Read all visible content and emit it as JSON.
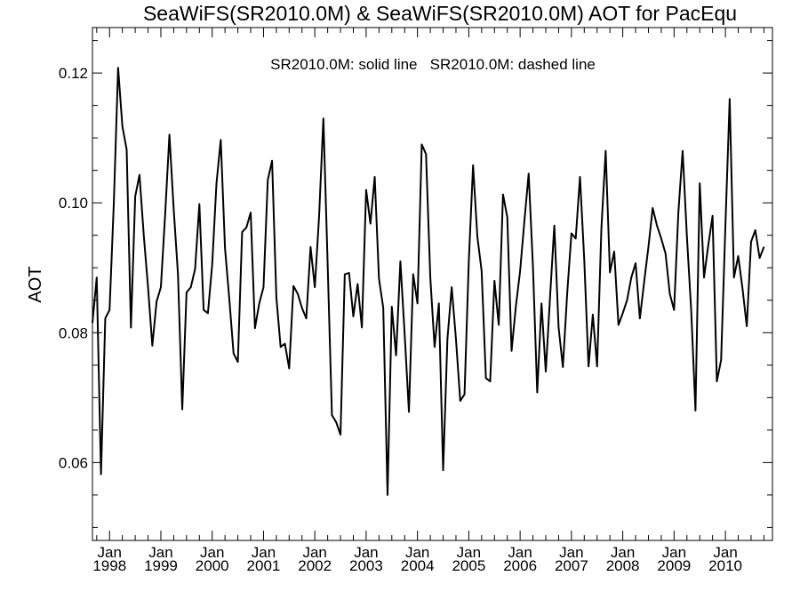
{
  "chart_data": {
    "type": "line",
    "title": "SeaWiFS(SR2010.0M) & SeaWiFS(SR2010.0M)  AOT for PacEqu",
    "ylabel": "AOT",
    "xlabel": "",
    "annotation": "SR2010.0M: solid line   SR2010.0M: dashed line",
    "ylim": [
      0.048,
      0.127
    ],
    "xlim": [
      "1997-09",
      "2010-12"
    ],
    "y_ticks": [
      0.06,
      0.08,
      0.1,
      0.12
    ],
    "y_tick_labels": [
      "0.06",
      "0.08",
      "0.10",
      "0.12"
    ],
    "x_tick_labels": [
      {
        "month": "Jan",
        "year": "1998"
      },
      {
        "month": "Jan",
        "year": "1999"
      },
      {
        "month": "Jan",
        "year": "2000"
      },
      {
        "month": "Jan",
        "year": "2001"
      },
      {
        "month": "Jan",
        "year": "2002"
      },
      {
        "month": "Jan",
        "year": "2003"
      },
      {
        "month": "Jan",
        "year": "2004"
      },
      {
        "month": "Jan",
        "year": "2005"
      },
      {
        "month": "Jan",
        "year": "2006"
      },
      {
        "month": "Jan",
        "year": "2007"
      },
      {
        "month": "Jan",
        "year": "2008"
      },
      {
        "month": "Jan",
        "year": "2009"
      },
      {
        "month": "Jan",
        "year": "2010"
      }
    ],
    "series": [
      {
        "line_style": "solid",
        "color": "#000000",
        "x_start": "1997-09",
        "x_step": "1 month",
        "values": [
          0.0815,
          0.0885,
          0.0582,
          0.0822,
          0.0835,
          0.1,
          0.1208,
          0.1118,
          0.1082,
          0.0808,
          0.101,
          0.1043,
          0.095,
          0.087,
          0.078,
          0.0848,
          0.087,
          0.0982,
          0.1105,
          0.099,
          0.089,
          0.0682,
          0.0862,
          0.087,
          0.0898,
          0.0998,
          0.0835,
          0.083,
          0.0905,
          0.103,
          0.1097,
          0.093,
          0.0852,
          0.0768,
          0.0755,
          0.0955,
          0.0962,
          0.0985,
          0.0807,
          0.0845,
          0.087,
          0.1035,
          0.1065,
          0.0855,
          0.0778,
          0.0783,
          0.0745,
          0.0872,
          0.086,
          0.0838,
          0.0822,
          0.0932,
          0.087,
          0.098,
          0.113,
          0.0905,
          0.0673,
          0.0662,
          0.0643,
          0.089,
          0.0892,
          0.0825,
          0.0875,
          0.0808,
          0.102,
          0.0968,
          0.104,
          0.0883,
          0.0838,
          0.055,
          0.084,
          0.0765,
          0.091,
          0.0798,
          0.0678,
          0.089,
          0.0845,
          0.109,
          0.1075,
          0.0885,
          0.0778,
          0.0845,
          0.0588,
          0.079,
          0.087,
          0.079,
          0.0695,
          0.0705,
          0.091,
          0.1058,
          0.0948,
          0.0895,
          0.073,
          0.0725,
          0.088,
          0.0812,
          0.1013,
          0.0978,
          0.0772,
          0.084,
          0.0895,
          0.0972,
          0.1045,
          0.0902,
          0.0708,
          0.0845,
          0.074,
          0.0855,
          0.0965,
          0.0808,
          0.0747,
          0.086,
          0.0953,
          0.0945,
          0.104,
          0.0912,
          0.0748,
          0.0828,
          0.0748,
          0.096,
          0.108,
          0.0893,
          0.0925,
          0.0812,
          0.083,
          0.085,
          0.0885,
          0.0907,
          0.0822,
          0.0878,
          0.0932,
          0.0992,
          0.0965,
          0.0945,
          0.0922,
          0.086,
          0.0835,
          0.0985,
          0.108,
          0.0948,
          0.0835,
          0.068,
          0.103,
          0.0885,
          0.0935,
          0.098,
          0.0725,
          0.0758,
          0.0965,
          0.116,
          0.0885,
          0.0918,
          0.0868,
          0.081,
          0.094,
          0.0958,
          0.0915,
          0.0932
        ]
      }
    ]
  }
}
